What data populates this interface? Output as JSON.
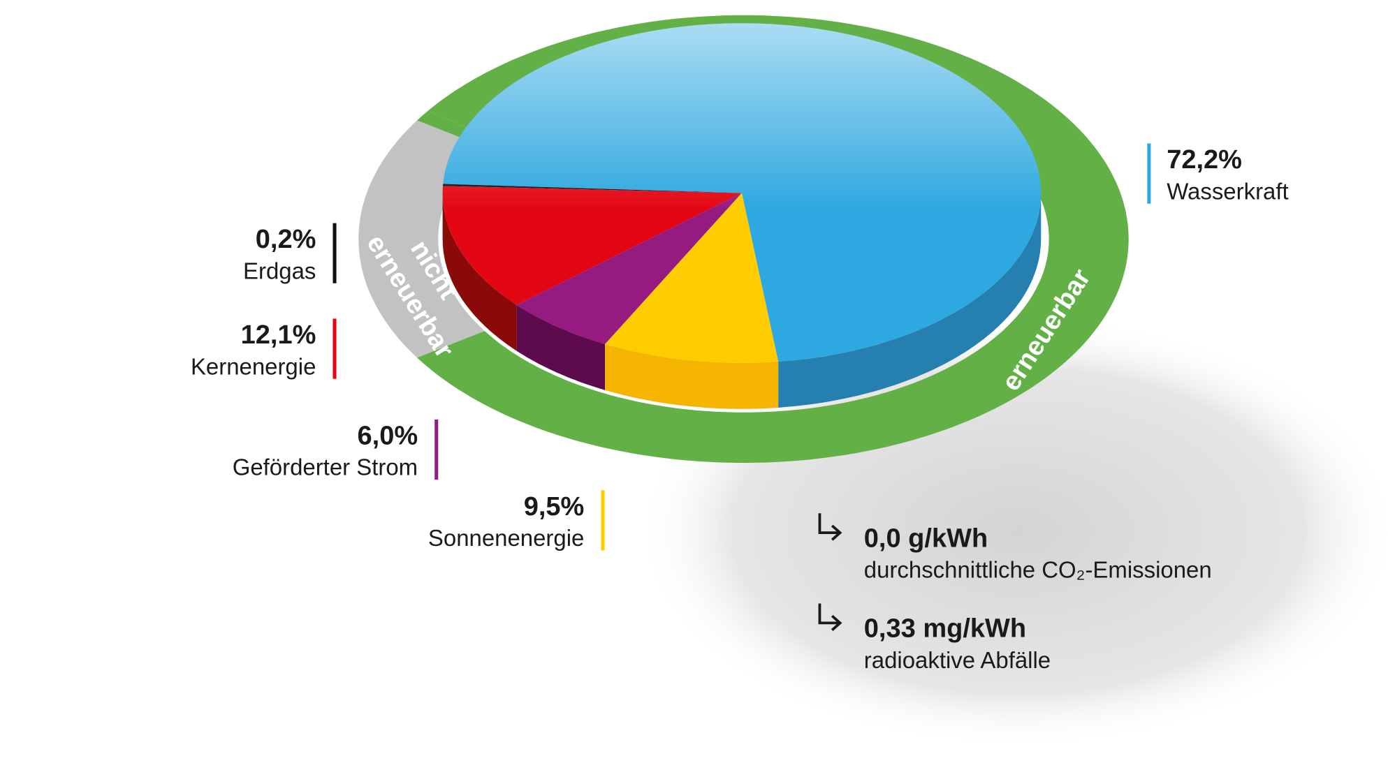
{
  "chart_data": {
    "type": "pie",
    "categories": [
      "Wasserkraft",
      "Erdgas",
      "Kernenergie",
      "Geförderter Strom",
      "Sonnenenergie"
    ],
    "values": [
      72.2,
      0.2,
      12.1,
      6.0,
      9.5
    ],
    "value_labels": [
      "72,2%",
      "0,2%",
      "12,1%",
      "6,0%",
      "9,5%"
    ],
    "colors": [
      "#2ea8e0",
      "#111111",
      "#e30613",
      "#951b81",
      "#ffcc00"
    ],
    "side_colors": [
      "#2580b0",
      "#111111",
      "#8a0a0a",
      "#5e0b4e",
      "#f5b400"
    ],
    "groups": {
      "renewable": "erneuerbar",
      "non_renewable": [
        "nicht",
        "erneuerbar"
      ]
    },
    "annotations": [
      {
        "value": "0,0 g/kWh",
        "label": "durchschnittliche CO₂-Emissionen"
      },
      {
        "value": "0,33 mg/kWh",
        "label": "radioaktive Abfälle"
      }
    ]
  }
}
